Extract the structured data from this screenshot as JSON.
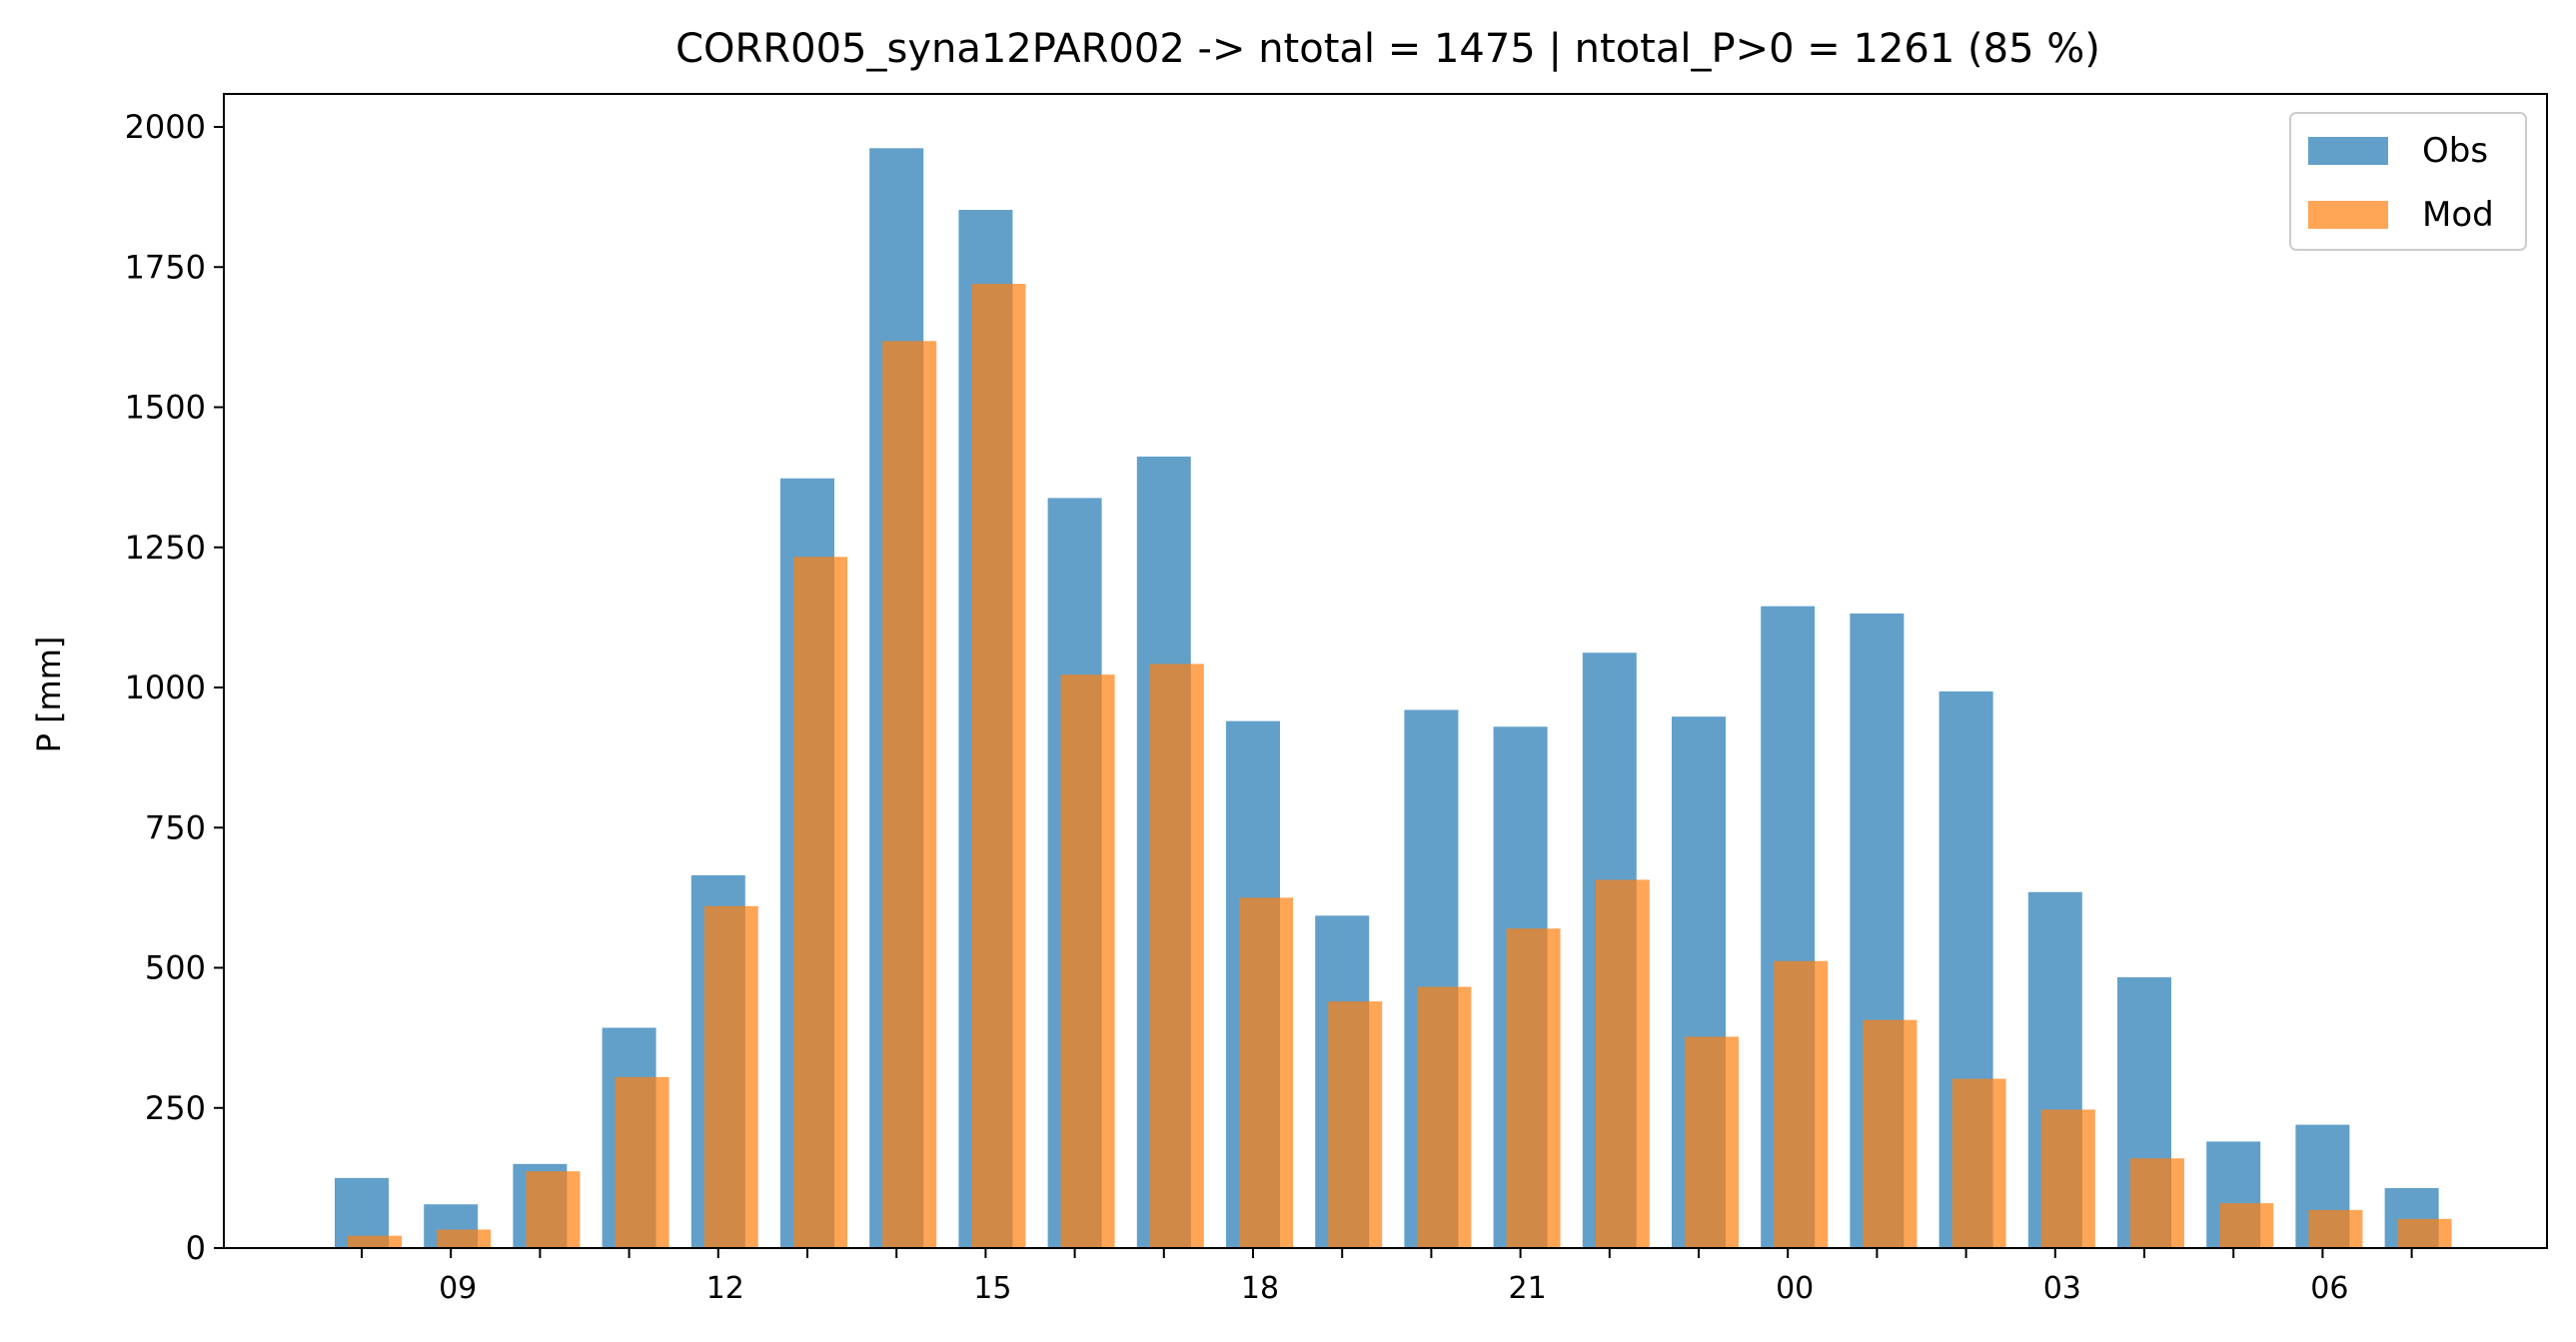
{
  "chart_data": {
    "type": "bar",
    "title": "CORR005_syna12PAR002 -> ntotal = 1475 | ntotal_P>0 = 1261 (85 %)",
    "ylabel": "P [mm]",
    "xlabel": "",
    "ylim": [
      0,
      2000
    ],
    "yticks": [
      0,
      250,
      500,
      750,
      1000,
      1250,
      1500,
      1750,
      2000
    ],
    "hours": [
      "08",
      "09",
      "10",
      "11",
      "12",
      "13",
      "14",
      "15",
      "16",
      "17",
      "18",
      "19",
      "20",
      "21",
      "22",
      "23",
      "00",
      "01",
      "02",
      "03",
      "04",
      "05",
      "06",
      "07"
    ],
    "xtick_labels": [
      "09",
      "12",
      "15",
      "18",
      "21",
      "00",
      "03",
      "06"
    ],
    "legend_position": "upper right",
    "grid": false,
    "series": [
      {
        "name": "Obs",
        "color": "#1f77b4",
        "values": [
          125,
          78,
          150,
          393,
          665,
          1373,
          1962,
          1852,
          1338,
          1412,
          940,
          593,
          960,
          930,
          1062,
          948,
          1145,
          1132,
          993,
          635,
          483,
          190,
          220,
          107
        ]
      },
      {
        "name": "Mod",
        "color": "#ff7f0e",
        "values": [
          22,
          33,
          137,
          305,
          610,
          1233,
          1618,
          1720,
          1023,
          1042,
          625,
          440,
          466,
          570,
          657,
          377,
          512,
          407,
          302,
          247,
          160,
          80,
          68,
          52
        ]
      }
    ]
  }
}
